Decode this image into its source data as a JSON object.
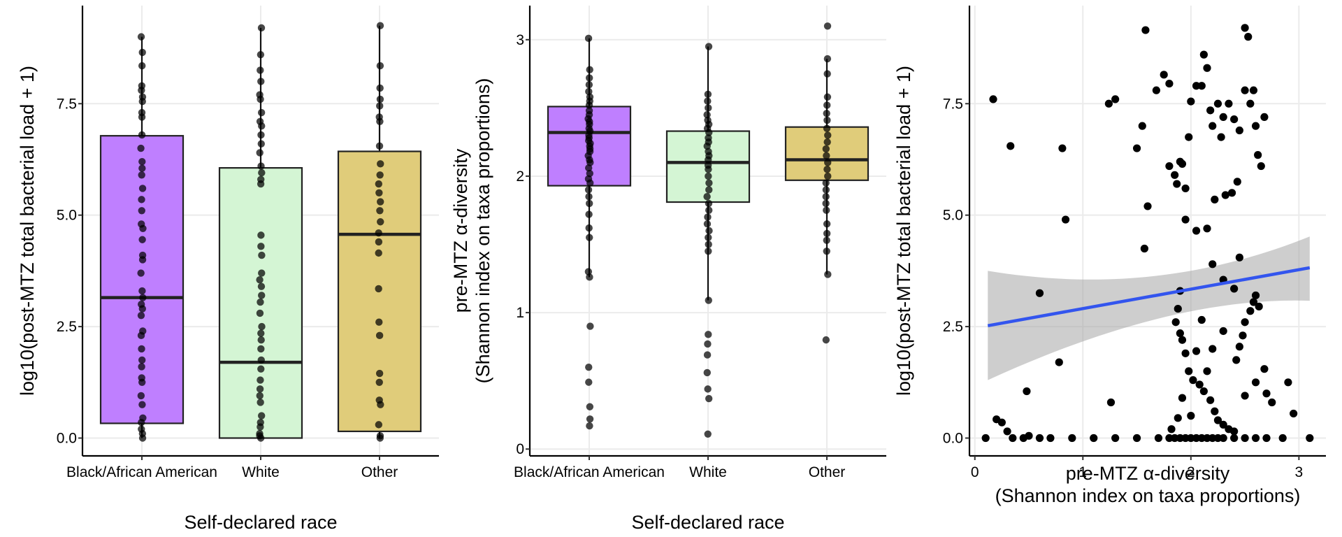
{
  "chart_data": [
    {
      "type": "box",
      "xlabel": "Self-declared race",
      "ylabel": "log10(post-MTZ total bacterial load + 1)",
      "ylim": [
        -0.4,
        9.7
      ],
      "yticks": [
        "0.0",
        "2.5",
        "5.0",
        "7.5"
      ],
      "grid": true,
      "categories": [
        "Black/African American",
        "White",
        "Other"
      ],
      "colors": [
        "#bf7fff",
        "#d4f5d4",
        "#e0cc7a"
      ],
      "boxes": [
        {
          "q1": 0.33,
          "median": 3.15,
          "q3": 6.78,
          "whisker_low": 0.0,
          "whisker_high": 9.0
        },
        {
          "q1": 0.0,
          "median": 1.7,
          "q3": 6.06,
          "whisker_low": 0.0,
          "whisker_high": 9.2
        },
        {
          "q1": 0.15,
          "median": 4.57,
          "q3": 6.43,
          "whisker_low": 0.0,
          "whisker_high": 9.25
        }
      ],
      "points": [
        [
          9.0,
          8.65,
          8.35,
          7.9,
          7.8,
          7.65,
          7.55,
          7.3,
          7.2,
          6.8,
          6.5,
          6.2,
          6.05,
          5.9,
          5.6,
          5.35,
          5.1,
          4.8,
          4.7,
          4.45,
          4.1,
          4.0,
          3.7,
          3.3,
          3.15,
          3.0,
          2.9,
          2.75,
          2.4,
          2.3,
          2.0,
          1.75,
          1.6,
          1.35,
          1.25,
          0.95,
          0.75,
          0.45,
          0.35,
          0.2,
          0.1,
          0.0
        ],
        [
          9.2,
          8.6,
          8.25,
          8.0,
          7.7,
          7.6,
          7.3,
          7.1,
          7.0,
          6.8,
          6.6,
          6.4,
          6.1,
          5.95,
          5.8,
          5.7,
          4.55,
          4.3,
          4.1,
          3.7,
          3.55,
          3.4,
          3.2,
          3.05,
          2.8,
          2.5,
          2.35,
          2.2,
          2.0,
          1.75,
          1.55,
          1.3,
          1.1,
          0.95,
          0.8,
          0.5,
          0.35,
          0.25,
          0.1,
          0.05,
          0.0
        ],
        [
          9.25,
          8.35,
          7.85,
          7.6,
          7.45,
          7.2,
          7.1,
          6.55,
          6.15,
          5.9,
          5.7,
          5.5,
          5.3,
          5.1,
          4.85,
          4.6,
          4.4,
          4.15,
          3.35,
          2.6,
          2.3,
          1.45,
          1.25,
          0.85,
          0.75,
          0.3,
          0.05,
          0.0
        ]
      ]
    },
    {
      "type": "box",
      "xlabel": "Self-declared race",
      "ylabel": "pre-MTZ α-diversity\n(Shannon index on taxa proportions)",
      "ylim": [
        -0.05,
        3.25
      ],
      "yticks": [
        "0",
        "1",
        "2",
        "3"
      ],
      "grid": true,
      "categories": [
        "Black/African American",
        "White",
        "Other"
      ],
      "colors": [
        "#bf7fff",
        "#d4f5d4",
        "#e0cc7a"
      ],
      "boxes": [
        {
          "q1": 1.93,
          "median": 2.32,
          "q3": 2.51,
          "whisker_low": 1.26,
          "whisker_high": 3.01
        },
        {
          "q1": 1.81,
          "median": 2.1,
          "q3": 2.33,
          "whisker_low": 1.09,
          "whisker_high": 2.95
        },
        {
          "q1": 1.97,
          "median": 2.12,
          "q3": 2.36,
          "whisker_low": 1.28,
          "whisker_high": 2.86
        }
      ],
      "points": [
        [
          3.01,
          2.78,
          2.72,
          2.67,
          2.62,
          2.58,
          2.55,
          2.52,
          2.48,
          2.45,
          2.42,
          2.4,
          2.38,
          2.35,
          2.33,
          2.3,
          2.28,
          2.26,
          2.24,
          2.22,
          2.2,
          2.18,
          2.15,
          2.12,
          2.1,
          2.06,
          2.02,
          1.98,
          1.95,
          1.9,
          1.85,
          1.8,
          1.72,
          1.62,
          1.55,
          1.3,
          1.26,
          0.9,
          0.6,
          0.49,
          0.31,
          0.22,
          0.17
        ],
        [
          2.95,
          2.6,
          2.55,
          2.5,
          2.45,
          2.41,
          2.38,
          2.35,
          2.32,
          2.28,
          2.25,
          2.22,
          2.18,
          2.15,
          2.12,
          2.08,
          2.05,
          2.0,
          1.95,
          1.9,
          1.85,
          1.8,
          1.75,
          1.7,
          1.65,
          1.6,
          1.55,
          1.5,
          1.45,
          1.09,
          0.84,
          0.77,
          0.69,
          0.56,
          0.44,
          0.37,
          0.11
        ],
        [
          3.1,
          2.86,
          2.75,
          2.58,
          2.52,
          2.46,
          2.41,
          2.35,
          2.3,
          2.25,
          2.2,
          2.15,
          2.1,
          2.05,
          2.0,
          1.95,
          1.9,
          1.85,
          1.8,
          1.75,
          1.65,
          1.58,
          1.53,
          1.45,
          1.28,
          0.8
        ]
      ]
    },
    {
      "type": "scatter",
      "xlabel": "pre-MTZ α-diversity\n(Shannon index on taxa proportions)",
      "ylabel": "log10(post-MTZ total bacterial load + 1)",
      "xlim": [
        -0.05,
        3.25
      ],
      "ylim": [
        -0.4,
        9.7
      ],
      "xticks": [
        "0",
        "1",
        "2",
        "3"
      ],
      "yticks": [
        "0.0",
        "2.5",
        "5.0",
        "7.5"
      ],
      "grid": true,
      "trend": {
        "x": [
          0.12,
          3.1
        ],
        "y": [
          2.52,
          3.82
        ],
        "ci_low": [
          1.3,
          3.08
        ],
        "ci_high": [
          3.75,
          4.52
        ],
        "color": "#3355ee"
      },
      "x": [
        0.1,
        0.2,
        0.25,
        0.3,
        0.35,
        0.45,
        0.5,
        0.6,
        0.7,
        0.9,
        1.1,
        1.3,
        1.5,
        1.7,
        1.8,
        1.85,
        1.9,
        1.95,
        2.0,
        2.05,
        2.1,
        2.15,
        2.2,
        2.25,
        2.3,
        2.4,
        2.5,
        2.6,
        2.7,
        2.85,
        3.1,
        0.17,
        0.33,
        0.81,
        0.84,
        0.6,
        0.78,
        0.48,
        1.3,
        1.24,
        1.26,
        1.58,
        1.55,
        1.5,
        1.6,
        1.57,
        1.68,
        1.75,
        1.8,
        1.8,
        1.87,
        1.85,
        1.9,
        1.95,
        1.98,
        1.92,
        2.0,
        2.05,
        2.12,
        2.15,
        2.1,
        2.18,
        2.2,
        2.25,
        2.3,
        2.28,
        2.35,
        2.4,
        2.45,
        2.5,
        2.55,
        2.58,
        2.6,
        2.62,
        2.68,
        2.65,
        2.53,
        2.5,
        2.43,
        2.38,
        2.32,
        2.22,
        2.15,
        2.05,
        1.95,
        1.9,
        1.88,
        1.86,
        1.9,
        1.92,
        1.95,
        1.98,
        2.02,
        2.08,
        2.12,
        2.18,
        2.22,
        2.25,
        2.3,
        2.35,
        2.4,
        2.42,
        2.45,
        2.48,
        2.5,
        2.55,
        2.58,
        2.6,
        2.63,
        2.68,
        2.7,
        2.75,
        2.9,
        2.95,
        2.2,
        2.3,
        2.1,
        2.4,
        2.05,
        1.82,
        1.88,
        1.92,
        2.15,
        2.5,
        2.6,
        2.3,
        2.0,
        2.45,
        2.2
      ],
      "y": [
        0.0,
        0.42,
        0.35,
        0.15,
        0.0,
        0.0,
        0.05,
        0.0,
        0.0,
        0.0,
        0.0,
        0.0,
        0.0,
        0.0,
        0.0,
        0.0,
        0.0,
        0.0,
        0.0,
        0.0,
        0.0,
        0.0,
        0.0,
        0.0,
        0.0,
        0.0,
        0.0,
        0.0,
        0.0,
        0.0,
        0.0,
        7.6,
        6.55,
        6.5,
        4.9,
        3.25,
        1.7,
        1.05,
        7.6,
        7.5,
        0.8,
        9.15,
        7.0,
        6.5,
        5.2,
        4.25,
        7.8,
        8.15,
        7.95,
        6.1,
        5.7,
        5.9,
        6.2,
        5.6,
        6.75,
        6.15,
        7.55,
        7.9,
        8.6,
        8.3,
        7.9,
        7.35,
        7.0,
        7.5,
        7.2,
        6.75,
        7.5,
        7.15,
        6.9,
        7.8,
        7.5,
        7.8,
        7.0,
        6.35,
        7.2,
        6.1,
        9.0,
        9.2,
        5.75,
        5.5,
        5.45,
        5.35,
        4.7,
        4.65,
        4.9,
        3.3,
        2.9,
        2.6,
        2.35,
        2.2,
        1.9,
        1.5,
        1.3,
        1.2,
        1.05,
        0.85,
        0.6,
        0.4,
        0.3,
        0.2,
        0.15,
        1.75,
        2.05,
        2.3,
        2.6,
        2.85,
        3.05,
        3.2,
        2.95,
        1.55,
        1.0,
        0.8,
        1.25,
        0.55,
        3.9,
        3.55,
        2.65,
        3.35,
        1.95,
        0.2,
        0.45,
        0.9,
        1.5,
        0.95,
        1.25,
        2.4,
        0.5,
        4.05,
        2.0
      ]
    }
  ]
}
